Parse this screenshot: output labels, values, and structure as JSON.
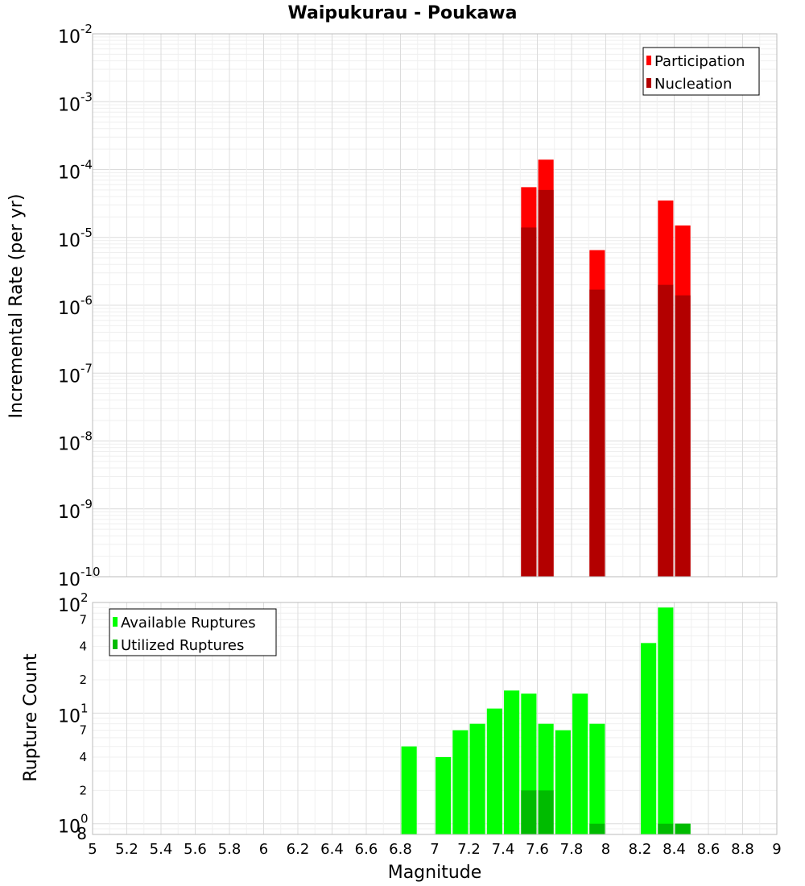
{
  "chart_data": [
    {
      "type": "bar",
      "title": "Waipukurau - Poukawa",
      "xlabel": "",
      "ylabel": "Incremental Rate (per yr)",
      "xlim": [
        5,
        9
      ],
      "ylim": [
        1e-10,
        0.01
      ],
      "y_scale": "log",
      "grid": true,
      "legend_position": "top-right",
      "series": [
        {
          "name": "Participation",
          "color": "#ff0000",
          "x": [
            7.55,
            7.65,
            7.95,
            8.35,
            8.45
          ],
          "values": [
            5.5e-05,
            0.00014,
            6.5e-06,
            3.5e-05,
            1.5e-05
          ]
        },
        {
          "name": "Nucleation",
          "color": "#b30000",
          "x": [
            7.55,
            7.65,
            7.95,
            8.35,
            8.45
          ],
          "values": [
            1.4e-05,
            5e-05,
            1.7e-06,
            2e-06,
            1.4e-06
          ]
        }
      ]
    },
    {
      "type": "bar",
      "title": "",
      "xlabel": "Magnitude",
      "ylabel": "Rupture Count",
      "xlim": [
        5,
        9
      ],
      "ylim": [
        0.8,
        100
      ],
      "y_scale": "log",
      "grid": true,
      "legend_position": "top-left",
      "series": [
        {
          "name": "Available Ruptures",
          "color": "#00ff00",
          "x": [
            6.85,
            7.05,
            7.15,
            7.25,
            7.35,
            7.45,
            7.55,
            7.65,
            7.75,
            7.85,
            7.95,
            8.25,
            8.35,
            8.45
          ],
          "values": [
            5,
            4,
            7,
            8,
            11,
            16,
            15,
            8,
            7,
            15,
            8,
            43,
            90,
            1
          ]
        },
        {
          "name": "Utilized Ruptures",
          "color": "#00bb00",
          "x": [
            7.55,
            7.65,
            7.95,
            8.35,
            8.45
          ],
          "values": [
            2,
            2,
            1,
            1,
            1
          ]
        }
      ]
    }
  ],
  "axes": {
    "x_ticks": [
      "5",
      "5.2",
      "5.4",
      "5.6",
      "5.8",
      "6",
      "6.2",
      "6.4",
      "6.6",
      "6.8",
      "7",
      "7.2",
      "7.4",
      "7.6",
      "7.8",
      "8",
      "8.2",
      "8.4",
      "8.6",
      "8.8",
      "9"
    ],
    "top_y_ticks": [
      {
        "base": "10",
        "exp": "-2"
      },
      {
        "base": "10",
        "exp": "-3"
      },
      {
        "base": "10",
        "exp": "-4"
      },
      {
        "base": "10",
        "exp": "-5"
      },
      {
        "base": "10",
        "exp": "-6"
      },
      {
        "base": "10",
        "exp": "-7"
      },
      {
        "base": "10",
        "exp": "-8"
      },
      {
        "base": "10",
        "exp": "-9"
      },
      {
        "base": "10",
        "exp": "-10"
      }
    ],
    "bottom_y_major": [
      {
        "base": "10",
        "exp": "2"
      },
      {
        "base": "10",
        "exp": "1"
      },
      {
        "base": "10",
        "exp": "0"
      }
    ],
    "bottom_y_minor": [
      "7",
      "4",
      "2",
      "7",
      "4",
      "2",
      "8"
    ]
  }
}
